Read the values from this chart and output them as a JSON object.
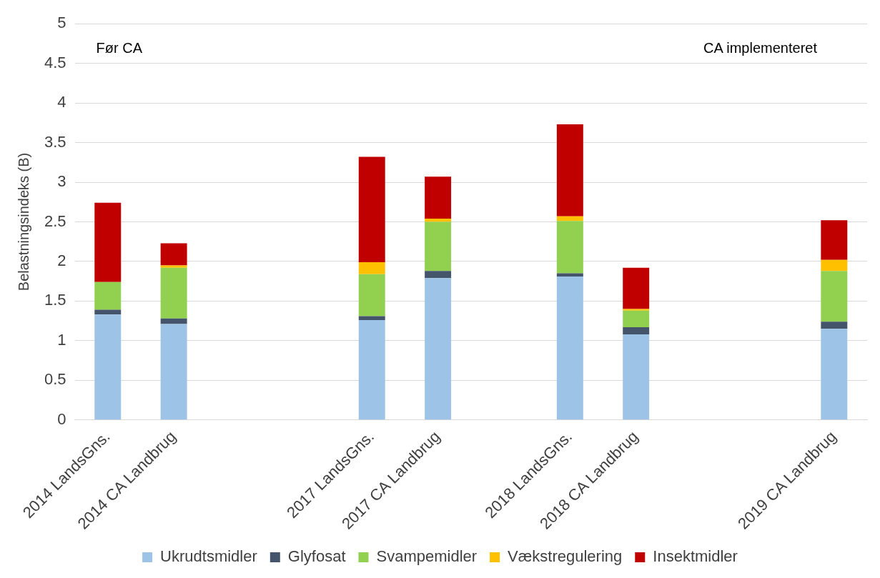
{
  "chart_data": {
    "type": "bar",
    "stacked": true,
    "ylabel": "Belastningsindeks (B)",
    "categories": [
      "2014 LandsGns.",
      "2014 CA Landbrug",
      null,
      null,
      "2017 LandsGns.",
      "2017 CA Landbrug",
      null,
      "2018 LandsGns.",
      "2018 CA Landbrug",
      null,
      null,
      "2019 CA Landbrug"
    ],
    "series": [
      {
        "name": "Ukrudtsmidler",
        "color": "#9dc3e6",
        "values": [
          1.33,
          1.21,
          null,
          null,
          1.26,
          1.79,
          null,
          1.81,
          1.08,
          null,
          null,
          1.15
        ]
      },
      {
        "name": "Glyfosat",
        "color": "#44546a",
        "values": [
          0.06,
          0.07,
          null,
          null,
          0.05,
          0.09,
          null,
          0.04,
          0.09,
          null,
          null,
          0.09
        ]
      },
      {
        "name": "Svampemidler",
        "color": "#92d050",
        "values": [
          0.35,
          0.64,
          null,
          null,
          0.53,
          0.62,
          null,
          0.66,
          0.21,
          null,
          null,
          0.64
        ]
      },
      {
        "name": "Vækstregulering",
        "color": "#ffc000",
        "values": [
          0,
          0.03,
          null,
          null,
          0.15,
          0.04,
          null,
          0.06,
          0.02,
          null,
          null,
          0.14
        ]
      },
      {
        "name": "Insektmidler",
        "color": "#c00000",
        "values": [
          1.0,
          0.28,
          null,
          null,
          1.33,
          0.53,
          null,
          1.16,
          0.52,
          null,
          null,
          0.5
        ]
      }
    ],
    "ylim": [
      0,
      5
    ],
    "yticks": [
      0,
      0.5,
      1,
      1.5,
      2,
      2.5,
      3,
      3.5,
      4,
      4.5,
      5
    ],
    "grid": "y",
    "legend": "bottom",
    "annotations": [
      "Før CA",
      "CA implementeret"
    ]
  }
}
